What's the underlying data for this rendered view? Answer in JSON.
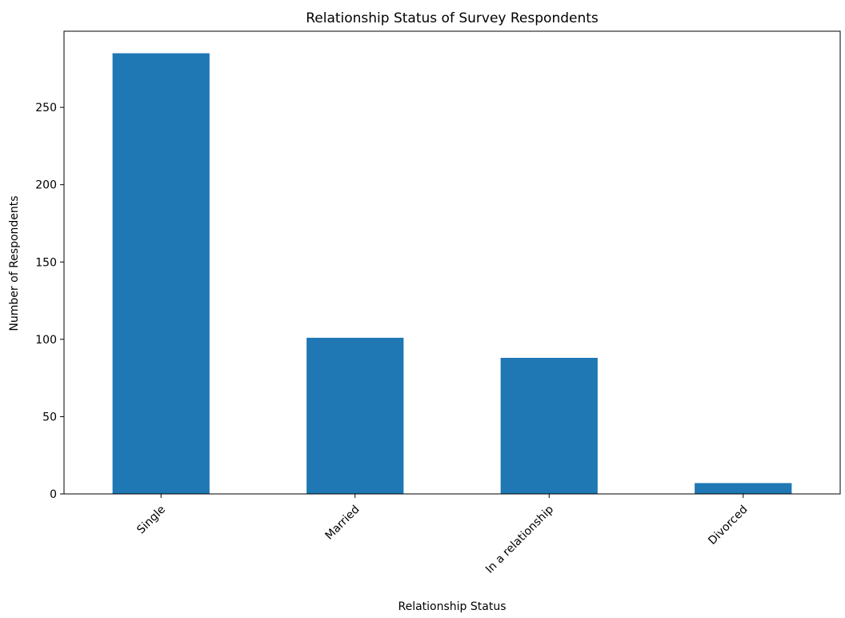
{
  "chart_data": {
    "type": "bar",
    "title": "Relationship Status of Survey Respondents",
    "xlabel": "Relationship Status",
    "ylabel": "Number of Respondents",
    "categories": [
      "Single",
      "Married",
      "In a relationship",
      "Divorced"
    ],
    "values": [
      285,
      101,
      88,
      7
    ],
    "ylim": [
      0,
      299.25
    ],
    "yticks": [
      0,
      50,
      100,
      150,
      200,
      250
    ],
    "bar_color": "#1f77b4",
    "grid": false,
    "legend": "none"
  }
}
